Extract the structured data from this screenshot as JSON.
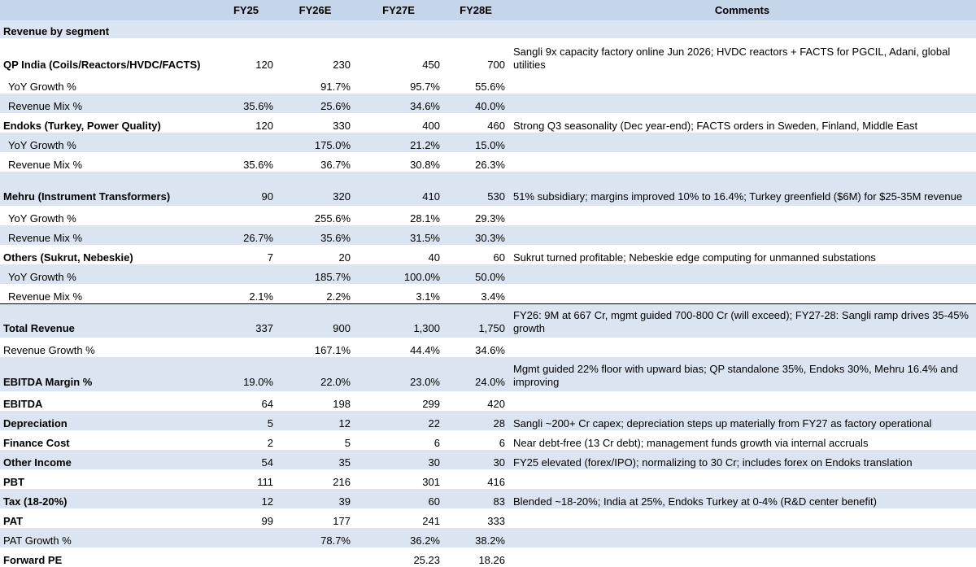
{
  "headers": {
    "label": "",
    "fy25": "FY25",
    "fy26": "FY26E",
    "fy27": "FY27E",
    "fy28": "FY28E",
    "comments": "Comments"
  },
  "rows": [
    {
      "label": "Revenue by segment",
      "v": [
        "",
        "",
        "",
        ""
      ],
      "comment": ""
    },
    {
      "label": "QP India (Coils/Reactors/HVDC/FACTS)",
      "v": [
        "120",
        "230",
        "450",
        "700"
      ],
      "comment": "Sangli 9x capacity factory online Jun 2026; HVDC reactors + FACTS for PGCIL, Adani, global utilities"
    },
    {
      "label": "YoY Growth %",
      "v": [
        "",
        "91.7%",
        "95.7%",
        "55.6%"
      ],
      "comment": ""
    },
    {
      "label": "Revenue Mix %",
      "v": [
        "35.6%",
        "25.6%",
        "34.6%",
        "40.0%"
      ],
      "comment": ""
    },
    {
      "label": "Endoks (Turkey, Power Quality)",
      "v": [
        "120",
        "330",
        "400",
        "460"
      ],
      "comment": "Strong Q3 seasonality (Dec year-end); FACTS orders in Sweden, Finland, Middle East"
    },
    {
      "label": "YoY Growth %",
      "v": [
        "",
        "175.0%",
        "21.2%",
        "15.0%"
      ],
      "comment": ""
    },
    {
      "label": "Revenue Mix %",
      "v": [
        "35.6%",
        "36.7%",
        "30.8%",
        "26.3%"
      ],
      "comment": ""
    },
    {
      "label": "Mehru (Instrument Transformers)",
      "v": [
        "90",
        "320",
        "410",
        "530"
      ],
      "comment": "51% subsidiary; margins improved 10% to 16.4%; Turkey greenfield ($6M) for $25-35M revenue"
    },
    {
      "label": "YoY Growth %",
      "v": [
        "",
        "255.6%",
        "28.1%",
        "29.3%"
      ],
      "comment": ""
    },
    {
      "label": "Revenue Mix %",
      "v": [
        "26.7%",
        "35.6%",
        "31.5%",
        "30.3%"
      ],
      "comment": ""
    },
    {
      "label": "Others (Sukrut, Nebeskie)",
      "v": [
        "7",
        "20",
        "40",
        "60"
      ],
      "comment": "Sukrut turned profitable; Nebeskie edge computing for unmanned substations"
    },
    {
      "label": "YoY Growth %",
      "v": [
        "",
        "185.7%",
        "100.0%",
        "50.0%"
      ],
      "comment": ""
    },
    {
      "label": "Revenue Mix %",
      "v": [
        "2.1%",
        "2.2%",
        "3.1%",
        "3.4%"
      ],
      "comment": ""
    },
    {
      "label": "Total Revenue",
      "v": [
        "337",
        "900",
        "1,300",
        "1,750"
      ],
      "comment": "FY26: 9M at 667 Cr, mgmt guided 700-800 Cr (will exceed); FY27-28: Sangli ramp drives 35-45% growth"
    },
    {
      "label": "Revenue Growth %",
      "v": [
        "",
        "167.1%",
        "44.4%",
        "34.6%"
      ],
      "comment": ""
    },
    {
      "label": "EBITDA Margin %",
      "v": [
        "19.0%",
        "22.0%",
        "23.0%",
        "24.0%"
      ],
      "comment": "Mgmt guided 22% floor with upward bias; QP standalone 35%, Endoks 30%, Mehru 16.4% and improving"
    },
    {
      "label": "EBITDA",
      "v": [
        "64",
        "198",
        "299",
        "420"
      ],
      "comment": ""
    },
    {
      "label": "Depreciation",
      "v": [
        "5",
        "12",
        "22",
        "28"
      ],
      "comment": "Sangli ~200+ Cr capex; depreciation steps up materially from FY27 as factory operational"
    },
    {
      "label": "Finance Cost",
      "v": [
        "2",
        "5",
        "6",
        "6"
      ],
      "comment": "Near debt-free (13 Cr debt); management funds growth via internal accruals"
    },
    {
      "label": "Other Income",
      "v": [
        "54",
        "35",
        "30",
        "30"
      ],
      "comment": "FY25 elevated (forex/IPO); normalizing to 30 Cr; includes forex on Endoks translation"
    },
    {
      "label": "PBT",
      "v": [
        "111",
        "216",
        "301",
        "416"
      ],
      "comment": ""
    },
    {
      "label": "Tax (18-20%)",
      "v": [
        "12",
        "39",
        "60",
        "83"
      ],
      "comment": "Blended ~18-20%; India at 25%, Endoks Turkey at 0-4% (R&D center benefit)"
    },
    {
      "label": "PAT",
      "v": [
        "99",
        "177",
        "241",
        "333"
      ],
      "comment": ""
    },
    {
      "label": "PAT Growth %",
      "v": [
        "",
        "78.7%",
        "36.2%",
        "38.2%"
      ],
      "comment": ""
    },
    {
      "label": "Forward PE",
      "v": [
        "",
        "",
        "25.23",
        "18.26"
      ],
      "comment": ""
    }
  ]
}
